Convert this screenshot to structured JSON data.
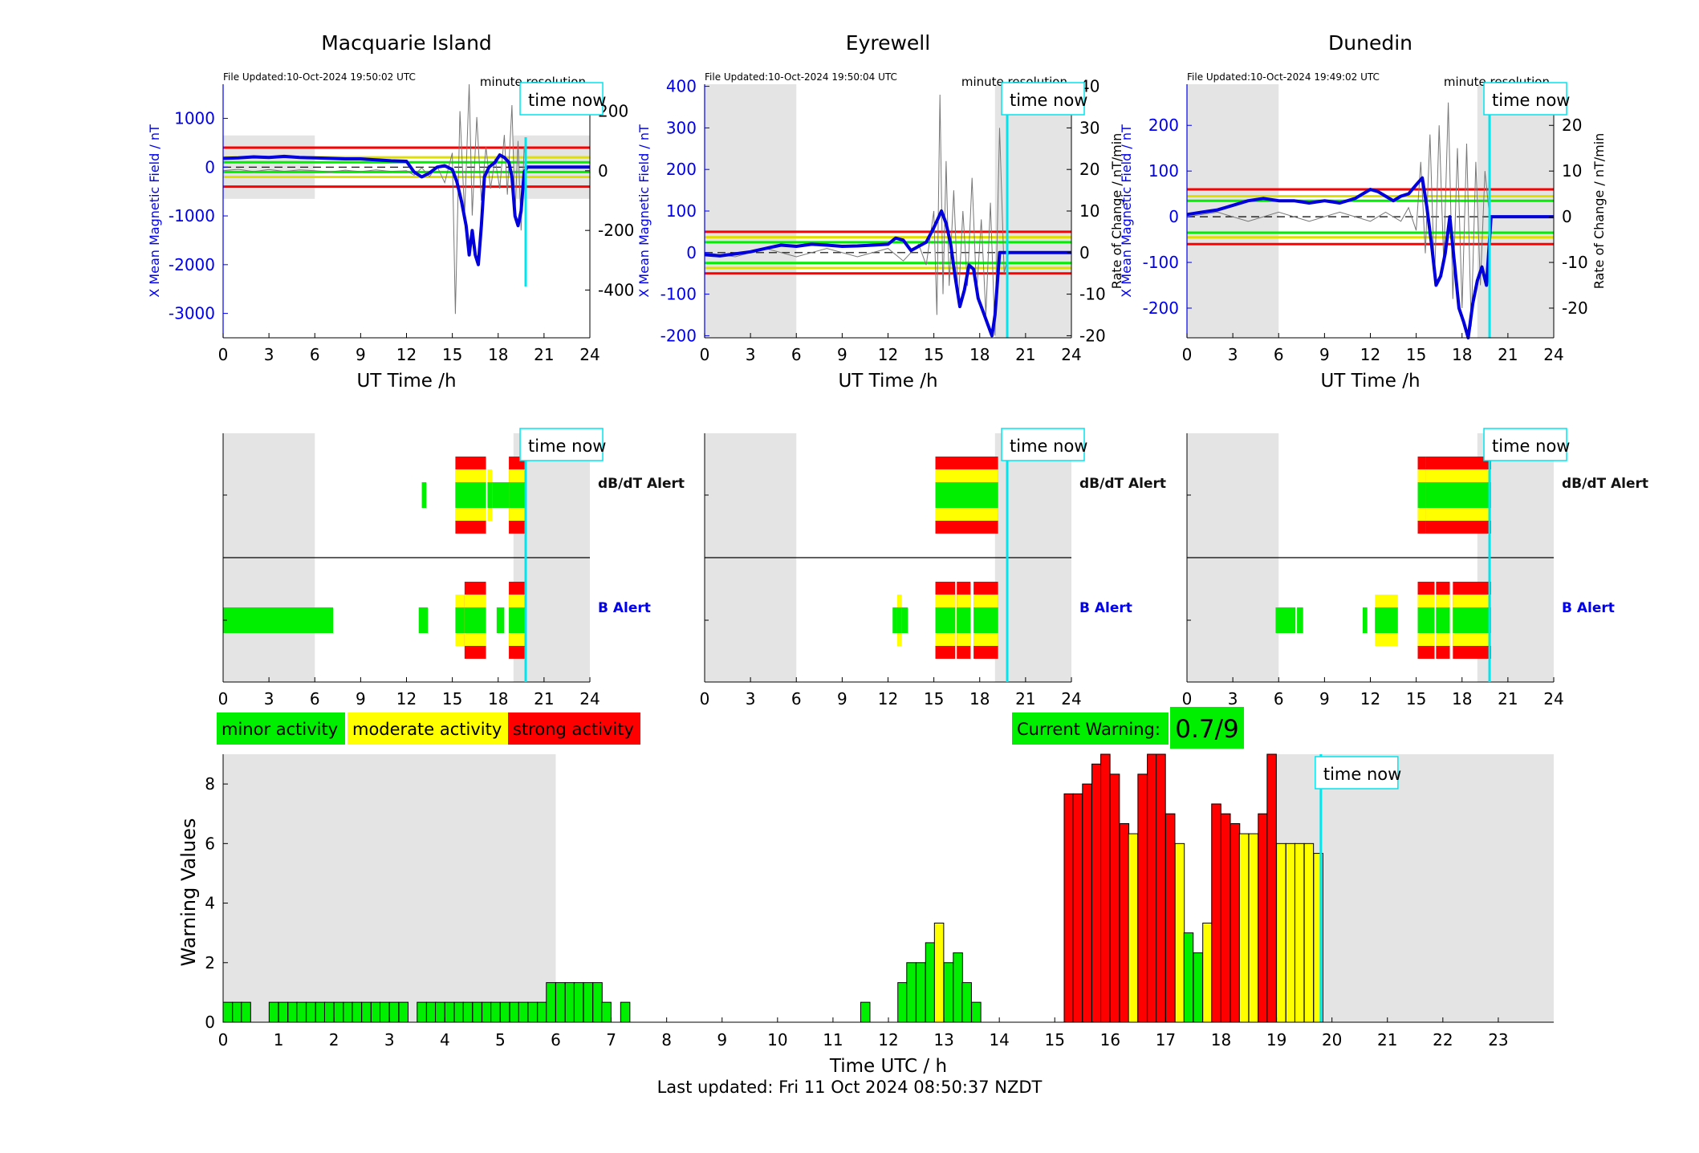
{
  "page": {
    "last_updated": "Last updated: Fri 11 Oct 2024 08:50:37 NZDT",
    "time_now_label": "time now",
    "time_now_hour": 19.8
  },
  "colors": {
    "minor": "#00ee00",
    "moderate": "#ffff00",
    "strong": "#ff0000",
    "field_line": "#0000dd",
    "night_shade": "#e4e4e4",
    "time_now_line": "#00e5ee",
    "axis_left": "#0000ee"
  },
  "legend": {
    "minor": "minor activity",
    "moderate": "moderate activity",
    "strong": "strong activity"
  },
  "current_warning": {
    "label": "Current Warning:",
    "value": "0.7/9"
  },
  "stations": [
    {
      "name": "Macquarie Island",
      "file_updated": "File Updated:10-Oct-2024 19:50:02 UTC",
      "resolution": "minute resolution",
      "ylabel_left": "X Mean Magnetic Field / nT",
      "ylabel_right": "",
      "xlabel": "UT Time /h",
      "left_ticks": [
        -3000,
        -2000,
        -1000,
        0,
        1000
      ],
      "right_ticks": [
        -400,
        -200,
        0,
        200
      ],
      "night_shade": [
        [
          0,
          6
        ],
        [
          19,
          24
        ]
      ],
      "thresholds": {
        "green": 100,
        "yellow": 200,
        "red": 400
      },
      "field": [
        [
          0,
          180
        ],
        [
          1,
          190
        ],
        [
          2,
          210
        ],
        [
          3,
          200
        ],
        [
          4,
          220
        ],
        [
          5,
          200
        ],
        [
          6,
          190
        ],
        [
          7,
          180
        ],
        [
          8,
          170
        ],
        [
          9,
          170
        ],
        [
          10,
          150
        ],
        [
          11,
          130
        ],
        [
          12,
          120
        ],
        [
          12.5,
          -100
        ],
        [
          13,
          -200
        ],
        [
          13.5,
          -120
        ],
        [
          14,
          0
        ],
        [
          14.5,
          30
        ],
        [
          15,
          -50
        ],
        [
          15.3,
          -300
        ],
        [
          15.6,
          -700
        ],
        [
          15.9,
          -1200
        ],
        [
          16.1,
          -1800
        ],
        [
          16.3,
          -1300
        ],
        [
          16.5,
          -1800
        ],
        [
          16.7,
          -2000
        ],
        [
          16.9,
          -1200
        ],
        [
          17.1,
          -200
        ],
        [
          17.4,
          0
        ],
        [
          17.8,
          100
        ],
        [
          18.1,
          250
        ],
        [
          18.4,
          200
        ],
        [
          18.7,
          100
        ],
        [
          18.9,
          -200
        ],
        [
          19.1,
          -1000
        ],
        [
          19.3,
          -1200
        ],
        [
          19.5,
          -900
        ],
        [
          19.7,
          -100
        ],
        [
          19.9,
          0
        ],
        [
          24,
          0
        ]
      ],
      "rate": [
        [
          0,
          0
        ],
        [
          1,
          5
        ],
        [
          2,
          -3
        ],
        [
          3,
          4
        ],
        [
          4,
          -2
        ],
        [
          5,
          3
        ],
        [
          6,
          0
        ],
        [
          7,
          -4
        ],
        [
          8,
          2
        ],
        [
          9,
          -3
        ],
        [
          10,
          3
        ],
        [
          11,
          -2
        ],
        [
          12,
          0
        ],
        [
          12.5,
          -15
        ],
        [
          13,
          10
        ],
        [
          13.5,
          -20
        ],
        [
          14,
          15
        ],
        [
          14.5,
          -40
        ],
        [
          15,
          60
        ],
        [
          15.2,
          -480
        ],
        [
          15.5,
          200
        ],
        [
          15.8,
          -150
        ],
        [
          16.1,
          290
        ],
        [
          16.3,
          -150
        ],
        [
          16.6,
          180
        ],
        [
          16.9,
          -100
        ],
        [
          17.2,
          80
        ],
        [
          17.5,
          -60
        ],
        [
          17.8,
          40
        ],
        [
          18.1,
          -60
        ],
        [
          18.4,
          120
        ],
        [
          18.6,
          -80
        ],
        [
          18.9,
          220
        ],
        [
          19.1,
          -150
        ],
        [
          19.3,
          100
        ],
        [
          19.5,
          -200
        ],
        [
          19.7,
          80
        ],
        [
          19.9,
          0
        ]
      ]
    },
    {
      "name": "Eyrewell",
      "file_updated": "File Updated:10-Oct-2024 19:50:04 UTC",
      "resolution": "minute resolution",
      "ylabel_left": "X Mean Magnetic Field / nT",
      "ylabel_right": "Rate of Change / nT/min",
      "xlabel": "UT Time /h",
      "left_ticks": [
        -200,
        -100,
        0,
        100,
        200,
        300,
        400
      ],
      "right_ticks": [
        -20,
        -10,
        0,
        10,
        20,
        30,
        40
      ],
      "night_shade": [
        [
          0,
          6
        ],
        [
          19,
          24
        ]
      ],
      "thresholds": {
        "green": 25,
        "yellow": 37,
        "red": 50
      },
      "field": [
        [
          0,
          -5
        ],
        [
          1,
          -8
        ],
        [
          2,
          -3
        ],
        [
          3,
          2
        ],
        [
          4,
          10
        ],
        [
          5,
          18
        ],
        [
          6,
          15
        ],
        [
          7,
          20
        ],
        [
          8,
          18
        ],
        [
          9,
          15
        ],
        [
          10,
          16
        ],
        [
          11,
          18
        ],
        [
          12,
          20
        ],
        [
          12.5,
          35
        ],
        [
          13,
          30
        ],
        [
          13.5,
          5
        ],
        [
          14,
          15
        ],
        [
          14.5,
          25
        ],
        [
          15,
          60
        ],
        [
          15.5,
          100
        ],
        [
          15.8,
          70
        ],
        [
          16.1,
          20
        ],
        [
          16.4,
          -60
        ],
        [
          16.7,
          -130
        ],
        [
          17,
          -90
        ],
        [
          17.3,
          -30
        ],
        [
          17.6,
          -40
        ],
        [
          17.9,
          -110
        ],
        [
          18.2,
          -140
        ],
        [
          18.5,
          -170
        ],
        [
          18.8,
          -200
        ],
        [
          19.0,
          -150
        ],
        [
          19.3,
          0
        ],
        [
          24,
          0
        ]
      ],
      "rate": [
        [
          0,
          0
        ],
        [
          2,
          -1
        ],
        [
          4,
          1
        ],
        [
          6,
          -1
        ],
        [
          8,
          1
        ],
        [
          10,
          -1
        ],
        [
          12,
          1
        ],
        [
          13,
          -2
        ],
        [
          14,
          2
        ],
        [
          14.5,
          -3
        ],
        [
          15,
          10
        ],
        [
          15.2,
          -15
        ],
        [
          15.4,
          38
        ],
        [
          15.6,
          -10
        ],
        [
          15.8,
          22
        ],
        [
          16,
          -8
        ],
        [
          16.3,
          15
        ],
        [
          16.6,
          -12
        ],
        [
          16.9,
          10
        ],
        [
          17.2,
          -8
        ],
        [
          17.5,
          18
        ],
        [
          17.8,
          -10
        ],
        [
          18.1,
          8
        ],
        [
          18.4,
          -15
        ],
        [
          18.7,
          12
        ],
        [
          19,
          -20
        ],
        [
          19.3,
          30
        ],
        [
          19.6,
          -5
        ],
        [
          19.9,
          0
        ]
      ]
    },
    {
      "name": "Dunedin",
      "file_updated": "File Updated:10-Oct-2024 19:49:02 UTC",
      "resolution": "minute resolution",
      "ylabel_left": "X Mean Magnetic Field / nT",
      "ylabel_right": "Rate of Change / nT/min",
      "xlabel": "UT Time /h",
      "left_ticks": [
        -200,
        -100,
        0,
        100,
        200
      ],
      "right_ticks": [
        -20,
        -10,
        0,
        10,
        20
      ],
      "night_shade": [
        [
          0,
          6
        ],
        [
          19,
          24
        ]
      ],
      "thresholds": {
        "green": 35,
        "yellow": 45,
        "red": 60
      },
      "field": [
        [
          0,
          5
        ],
        [
          1,
          10
        ],
        [
          2,
          15
        ],
        [
          3,
          25
        ],
        [
          4,
          35
        ],
        [
          5,
          40
        ],
        [
          6,
          35
        ],
        [
          7,
          35
        ],
        [
          8,
          30
        ],
        [
          9,
          35
        ],
        [
          10,
          30
        ],
        [
          11,
          40
        ],
        [
          12,
          60
        ],
        [
          12.5,
          55
        ],
        [
          13,
          45
        ],
        [
          13.5,
          35
        ],
        [
          14,
          45
        ],
        [
          14.5,
          50
        ],
        [
          15,
          70
        ],
        [
          15.4,
          85
        ],
        [
          15.7,
          20
        ],
        [
          16,
          -60
        ],
        [
          16.3,
          -150
        ],
        [
          16.6,
          -130
        ],
        [
          16.9,
          -80
        ],
        [
          17.2,
          0
        ],
        [
          17.5,
          -100
        ],
        [
          17.8,
          -200
        ],
        [
          18.1,
          -230
        ],
        [
          18.4,
          -270
        ],
        [
          18.7,
          -190
        ],
        [
          19.0,
          -140
        ],
        [
          19.3,
          -110
        ],
        [
          19.6,
          -150
        ],
        [
          19.9,
          0
        ],
        [
          24,
          0
        ]
      ],
      "rate": [
        [
          0,
          0
        ],
        [
          2,
          1
        ],
        [
          4,
          -1
        ],
        [
          6,
          1
        ],
        [
          8,
          -1
        ],
        [
          10,
          1
        ],
        [
          12,
          -1
        ],
        [
          13,
          1
        ],
        [
          14,
          -1
        ],
        [
          14.5,
          2
        ],
        [
          15,
          -3
        ],
        [
          15.3,
          12
        ],
        [
          15.6,
          -8
        ],
        [
          15.9,
          18
        ],
        [
          16.2,
          -14
        ],
        [
          16.5,
          20
        ],
        [
          16.8,
          -10
        ],
        [
          17.1,
          25
        ],
        [
          17.4,
          -18
        ],
        [
          17.7,
          15
        ],
        [
          18,
          -20
        ],
        [
          18.3,
          16
        ],
        [
          18.6,
          -24
        ],
        [
          18.9,
          12
        ],
        [
          19.2,
          -15
        ],
        [
          19.5,
          10
        ],
        [
          19.8,
          0
        ]
      ]
    }
  ],
  "alerts": {
    "dbdt_label": "dB/dT Alert",
    "b_label": "B Alert",
    "panels": [
      {
        "dbdt": [
          [
            13.0,
            13.3,
            1
          ],
          [
            15.2,
            17.2,
            3
          ],
          [
            17.3,
            17.6,
            2
          ],
          [
            17.6,
            18.7,
            1
          ],
          [
            18.7,
            19.8,
            3
          ]
        ],
        "b": [
          [
            0,
            7.2,
            1
          ],
          [
            12.8,
            13.4,
            1
          ],
          [
            15.2,
            15.8,
            2
          ],
          [
            15.8,
            17.2,
            3
          ],
          [
            17.9,
            18.4,
            1
          ],
          [
            18.7,
            19.8,
            3
          ]
        ]
      },
      {
        "dbdt": [
          [
            15.1,
            19.2,
            3
          ]
        ],
        "b": [
          [
            12.3,
            13.3,
            1
          ],
          [
            12.6,
            12.9,
            2
          ],
          [
            15.1,
            16.4,
            3
          ],
          [
            16.5,
            17.4,
            3
          ],
          [
            17.6,
            19.2,
            3
          ]
        ]
      },
      {
        "dbdt": [
          [
            15.1,
            15.6,
            3
          ],
          [
            15.6,
            19.9,
            3
          ]
        ],
        "b": [
          [
            5.8,
            7.1,
            1
          ],
          [
            7.2,
            7.6,
            1
          ],
          [
            11.5,
            11.8,
            1
          ],
          [
            12.3,
            13.8,
            2
          ],
          [
            15.1,
            16.2,
            3
          ],
          [
            16.3,
            17.2,
            3
          ],
          [
            17.4,
            19.9,
            3
          ]
        ]
      }
    ]
  },
  "chart_data": {
    "type": "bar",
    "xlabel": "Time UTC / h",
    "ylabel": "Warning Values",
    "xlim": [
      0,
      24
    ],
    "ylim": [
      0,
      9
    ],
    "x_ticks": [
      0,
      1,
      2,
      3,
      4,
      5,
      6,
      7,
      8,
      9,
      10,
      11,
      12,
      13,
      14,
      15,
      16,
      17,
      18,
      19,
      20,
      21,
      22,
      23
    ],
    "y_ticks": [
      0,
      2,
      4,
      6,
      8
    ],
    "night_shade": [
      [
        0,
        6
      ],
      [
        19,
        24
      ]
    ],
    "bar_width_hours": 0.1667,
    "bars": [
      [
        0.0,
        0.67
      ],
      [
        0.17,
        0.67
      ],
      [
        0.33,
        0.67
      ],
      [
        0.83,
        0.67
      ],
      [
        1.0,
        0.67
      ],
      [
        1.17,
        0.67
      ],
      [
        1.33,
        0.67
      ],
      [
        1.5,
        0.67
      ],
      [
        1.67,
        0.67
      ],
      [
        1.83,
        0.67
      ],
      [
        2.0,
        0.67
      ],
      [
        2.17,
        0.67
      ],
      [
        2.33,
        0.67
      ],
      [
        2.5,
        0.67
      ],
      [
        2.67,
        0.67
      ],
      [
        2.83,
        0.67
      ],
      [
        3.0,
        0.67
      ],
      [
        3.17,
        0.67
      ],
      [
        3.5,
        0.67
      ],
      [
        3.67,
        0.67
      ],
      [
        3.83,
        0.67
      ],
      [
        4.0,
        0.67
      ],
      [
        4.17,
        0.67
      ],
      [
        4.33,
        0.67
      ],
      [
        4.5,
        0.67
      ],
      [
        4.67,
        0.67
      ],
      [
        4.83,
        0.67
      ],
      [
        5.0,
        0.67
      ],
      [
        5.17,
        0.67
      ],
      [
        5.33,
        0.67
      ],
      [
        5.5,
        0.67
      ],
      [
        5.67,
        0.67
      ],
      [
        5.83,
        1.33
      ],
      [
        6.0,
        1.33
      ],
      [
        6.17,
        1.33
      ],
      [
        6.33,
        1.33
      ],
      [
        6.5,
        1.33
      ],
      [
        6.67,
        1.33
      ],
      [
        6.83,
        0.67
      ],
      [
        7.17,
        0.67
      ],
      [
        11.5,
        0.67
      ],
      [
        12.17,
        1.33
      ],
      [
        12.33,
        2.0
      ],
      [
        12.5,
        2.0
      ],
      [
        12.67,
        2.67
      ],
      [
        12.83,
        3.33
      ],
      [
        13.0,
        2.0
      ],
      [
        13.17,
        2.33
      ],
      [
        13.33,
        1.33
      ],
      [
        13.5,
        0.67
      ],
      [
        15.17,
        7.67
      ],
      [
        15.33,
        7.67
      ],
      [
        15.5,
        8.0
      ],
      [
        15.67,
        8.67
      ],
      [
        15.83,
        9.0
      ],
      [
        16.0,
        8.33
      ],
      [
        16.17,
        6.67
      ],
      [
        16.33,
        6.33
      ],
      [
        16.5,
        8.33
      ],
      [
        16.67,
        9.0
      ],
      [
        16.83,
        9.0
      ],
      [
        17.0,
        7.0
      ],
      [
        17.17,
        6.0
      ],
      [
        17.33,
        3.0
      ],
      [
        17.5,
        2.33
      ],
      [
        17.67,
        3.33
      ],
      [
        17.83,
        7.33
      ],
      [
        18.0,
        7.0
      ],
      [
        18.17,
        6.67
      ],
      [
        18.33,
        6.33
      ],
      [
        18.5,
        6.33
      ],
      [
        18.67,
        7.0
      ],
      [
        18.83,
        9.0
      ],
      [
        19.0,
        6.0
      ],
      [
        19.17,
        6.0
      ],
      [
        19.33,
        6.0
      ],
      [
        19.5,
        6.0
      ],
      [
        19.67,
        5.67
      ]
    ],
    "color_rule": "red if >=6.67 and within 15.17-19.0, yellow if >=3 or in 17.0-17.17/19.0-19.83 band, green otherwise"
  }
}
